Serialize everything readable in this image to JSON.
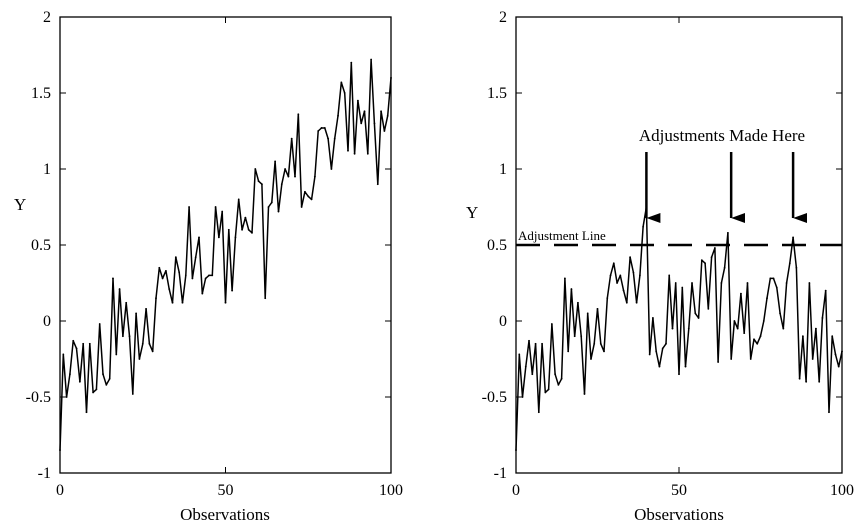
{
  "chart_data": [
    {
      "type": "line",
      "title": "",
      "xlabel": "Observations",
      "ylabel": "Y",
      "xlim": [
        0,
        100
      ],
      "ylim": [
        -1,
        2
      ],
      "xticks": [
        0,
        50,
        100
      ],
      "yticks": [
        -1,
        -0.5,
        0,
        0.5,
        1,
        1.5,
        2
      ],
      "xtick_labels": [
        "0",
        "50",
        "100"
      ],
      "ytick_labels": [
        "-1",
        "-0.5",
        "0",
        "0.5",
        "1",
        "1.5",
        "2"
      ],
      "grid": false,
      "line_color": "#000000",
      "series": [
        {
          "x": [
            0,
            1,
            2,
            3,
            4,
            5,
            6,
            7,
            8,
            9,
            10,
            11,
            12,
            13,
            14,
            15,
            16,
            17,
            18,
            19,
            20,
            21,
            22,
            23,
            24,
            25,
            26,
            27,
            28,
            29,
            30,
            31,
            32,
            33,
            34,
            35,
            36,
            37,
            38,
            39,
            40,
            41,
            42,
            43,
            44,
            45,
            46,
            47,
            48,
            49,
            50,
            51,
            52,
            53,
            54,
            55,
            56,
            57,
            58,
            59,
            60,
            61,
            62,
            63,
            64,
            65,
            66,
            67,
            68,
            69,
            70,
            71,
            72,
            73,
            74,
            75,
            76,
            77,
            78,
            79,
            80,
            81,
            82,
            83,
            84,
            85,
            86,
            87,
            88,
            89,
            90,
            91,
            92,
            93,
            94,
            95,
            96,
            97,
            98,
            99,
            100
          ],
          "values": [
            -0.85,
            -0.22,
            -0.5,
            -0.35,
            -0.13,
            -0.18,
            -0.4,
            -0.15,
            -0.6,
            -0.15,
            -0.47,
            -0.45,
            -0.02,
            -0.35,
            -0.42,
            -0.38,
            0.28,
            -0.22,
            0.21,
            -0.1,
            0.12,
            -0.1,
            -0.48,
            0.05,
            -0.25,
            -0.15,
            0.08,
            -0.15,
            -0.2,
            0.15,
            0.35,
            0.28,
            0.33,
            0.21,
            0.12,
            0.42,
            0.32,
            0.12,
            0.3,
            0.75,
            0.28,
            0.42,
            0.55,
            0.18,
            0.28,
            0.3,
            0.3,
            0.75,
            0.55,
            0.72,
            0.12,
            0.6,
            0.2,
            0.55,
            0.8,
            0.6,
            0.68,
            0.6,
            0.58,
            1.0,
            0.92,
            0.9,
            0.15,
            0.75,
            0.78,
            1.05,
            0.72,
            0.9,
            1.0,
            0.95,
            1.2,
            0.95,
            1.36,
            0.75,
            0.85,
            0.82,
            0.8,
            0.95,
            1.25,
            1.27,
            1.27,
            1.2,
            1.0,
            1.2,
            1.35,
            1.57,
            1.5,
            1.12,
            1.7,
            1.1,
            1.45,
            1.3,
            1.38,
            1.1,
            1.72,
            1.3,
            0.9,
            1.38,
            1.25,
            1.35,
            1.6
          ]
        }
      ]
    },
    {
      "type": "line",
      "title": "",
      "xlabel": "Observations",
      "ylabel": "Y",
      "xlim": [
        0,
        100
      ],
      "ylim": [
        -1,
        2
      ],
      "xticks": [
        0,
        50,
        100
      ],
      "yticks": [
        -1,
        -0.5,
        0,
        0.5,
        1,
        1.5,
        2
      ],
      "xtick_labels": [
        "0",
        "50",
        "100"
      ],
      "ytick_labels": [
        "-1",
        "-0.5",
        "0",
        "0.5",
        "1",
        "1.5",
        "2"
      ],
      "grid": false,
      "line_color": "#000000",
      "adjustment_line": {
        "y": 0.5,
        "label": "Adjustment Line",
        "style": "dashed"
      },
      "annotation": {
        "text": "Adjustments Made Here",
        "arrow_x": [
          40,
          66,
          85
        ]
      },
      "series": [
        {
          "x": [
            0,
            1,
            2,
            3,
            4,
            5,
            6,
            7,
            8,
            9,
            10,
            11,
            12,
            13,
            14,
            15,
            16,
            17,
            18,
            19,
            20,
            21,
            22,
            23,
            24,
            25,
            26,
            27,
            28,
            29,
            30,
            31,
            32,
            33,
            34,
            35,
            36,
            37,
            38,
            39,
            40,
            41,
            42,
            43,
            44,
            45,
            46,
            47,
            48,
            49,
            50,
            51,
            52,
            53,
            54,
            55,
            56,
            57,
            58,
            59,
            60,
            61,
            62,
            63,
            64,
            65,
            66,
            67,
            68,
            69,
            70,
            71,
            72,
            73,
            74,
            75,
            76,
            77,
            78,
            79,
            80,
            81,
            82,
            83,
            84,
            85,
            86,
            87,
            88,
            89,
            90,
            91,
            92,
            93,
            94,
            95,
            96,
            97,
            98,
            99,
            100
          ],
          "values": [
            -0.85,
            -0.22,
            -0.5,
            -0.3,
            -0.13,
            -0.35,
            -0.15,
            -0.6,
            -0.15,
            -0.47,
            -0.45,
            -0.02,
            -0.35,
            -0.42,
            -0.38,
            0.28,
            -0.2,
            0.21,
            -0.1,
            0.12,
            -0.1,
            -0.48,
            0.05,
            -0.25,
            -0.15,
            0.08,
            -0.15,
            -0.2,
            0.15,
            0.3,
            0.38,
            0.25,
            0.3,
            0.2,
            0.12,
            0.42,
            0.32,
            0.12,
            0.3,
            0.62,
            0.75,
            -0.22,
            0.02,
            -0.2,
            -0.3,
            -0.18,
            -0.15,
            0.3,
            -0.05,
            0.25,
            -0.35,
            0.22,
            -0.3,
            -0.05,
            0.25,
            0.05,
            0.02,
            0.4,
            0.38,
            0.08,
            0.42,
            0.48,
            -0.27,
            0.25,
            0.35,
            0.58,
            -0.25,
            0.0,
            -0.05,
            0.18,
            -0.08,
            0.25,
            -0.25,
            -0.12,
            -0.15,
            -0.1,
            0.0,
            0.15,
            0.28,
            0.28,
            0.22,
            0.05,
            -0.05,
            0.25,
            0.38,
            0.55,
            0.35,
            -0.38,
            -0.1,
            -0.4,
            0.25,
            -0.25,
            -0.05,
            -0.4,
            0.02,
            0.2,
            -0.6,
            -0.1,
            -0.22,
            -0.3,
            -0.2
          ]
        }
      ]
    }
  ]
}
